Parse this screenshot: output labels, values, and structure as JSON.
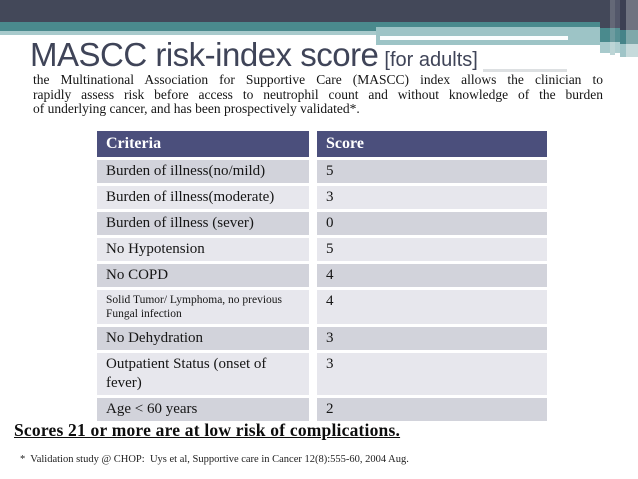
{
  "slide": {
    "title": "MASCC risk-index score",
    "title_suffix": "[for adults]",
    "intro_lines": [
      "the Multinational Association for Supportive Care (MASCC) index allows the clinician to",
      "rapidly assess risk before access to neutrophil count and without knowledge of the burden",
      "of underlying cancer, and has been prospectively validated*."
    ],
    "conclusion": "Scores 21 or more are at low risk of complications.",
    "footnote": "*  Validation study @ CHOP:  Uys et al, Supportive care in Cancer 12(8):555-60, 2004 Aug."
  },
  "table": {
    "headers": [
      "Criteria",
      "Score"
    ],
    "rows": [
      {
        "criteria": "Burden of illness(no/mild)",
        "score": "5"
      },
      {
        "criteria": "Burden of illness(moderate)",
        "score": "3"
      },
      {
        "criteria": "Burden of illness (sever)",
        "score": "0"
      },
      {
        "criteria": "No Hypotension",
        "score": "5"
      },
      {
        "criteria": "No COPD",
        "score": "4"
      },
      {
        "criteria": "Solid Tumor/ Lymphoma, no previous Fungal infection",
        "score": "4"
      },
      {
        "criteria": "No Dehydration",
        "score": "3"
      },
      {
        "criteria": "Outpatient Status (onset of fever)",
        "score": "3"
      },
      {
        "criteria": "Age < 60 years",
        "score": "2"
      }
    ]
  },
  "colors": {
    "banner_dark": "#434859",
    "banner_teal": "#4A8A8D",
    "banner_light_teal": "#A8CACC",
    "table_header_bg": "#4B4F7C",
    "row_dark": "#D2D3DB",
    "row_light": "#E7E7ED",
    "title_text": "#3F4458"
  }
}
